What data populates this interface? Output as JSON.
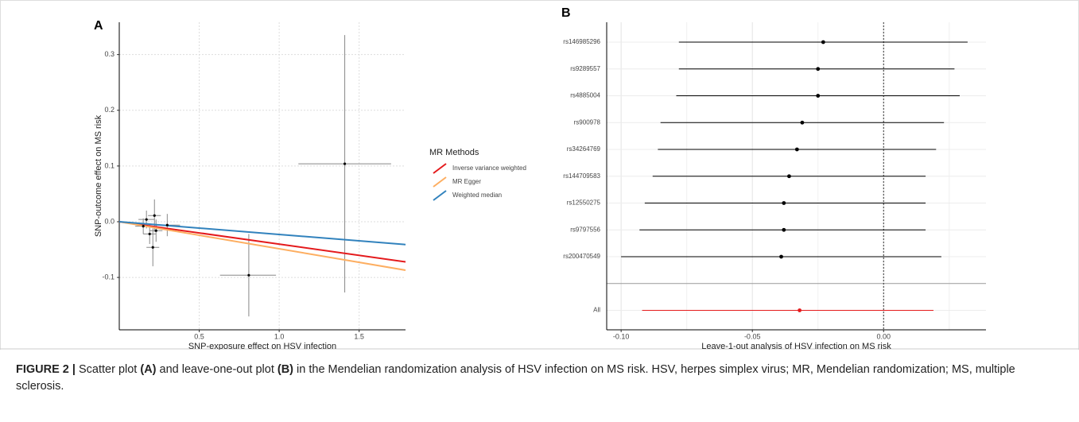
{
  "chart_data": [
    {
      "type": "scatter",
      "panel": "A",
      "xlabel": "SNP-exposure effect on HSV infection",
      "ylabel": "SNP-outcome effect on MS risk",
      "x": [
        0.15,
        0.17,
        0.19,
        0.21,
        0.22,
        0.23,
        0.3,
        0.81,
        1.41
      ],
      "values": [
        -0.008,
        0.004,
        -0.022,
        -0.046,
        0.011,
        -0.016,
        -0.006,
        -0.096,
        0.104
      ],
      "x_low": [
        0.1,
        0.12,
        0.15,
        0.17,
        0.18,
        0.19,
        0.22,
        0.63,
        1.12
      ],
      "x_high": [
        0.2,
        0.22,
        0.23,
        0.25,
        0.26,
        0.27,
        0.38,
        0.98,
        1.7
      ],
      "y_low": [
        -0.022,
        -0.012,
        -0.04,
        -0.08,
        -0.018,
        -0.036,
        -0.026,
        -0.17,
        -0.127
      ],
      "y_high": [
        0.006,
        0.02,
        -0.004,
        -0.012,
        0.04,
        0.004,
        0.014,
        -0.022,
        0.335
      ],
      "point_color": "#000000",
      "errorbar_color": "#888888",
      "legend_title": "MR Methods",
      "series": [
        {
          "name": "Inverse variance weighted",
          "color": "#e41a1c",
          "x": [
            0,
            1.79
          ],
          "values": [
            0,
            -0.072
          ]
        },
        {
          "name": "MR Egger",
          "color": "#fdae61",
          "x": [
            0,
            1.79
          ],
          "values": [
            0,
            -0.087
          ]
        },
        {
          "name": "Weighted median",
          "color": "#3182bd",
          "x": [
            0,
            1.79
          ],
          "values": [
            0,
            -0.041
          ]
        }
      ],
      "xlim": [
        0.0,
        1.79
      ],
      "ylim": [
        -0.194,
        0.358
      ],
      "xticks": [
        0.5,
        {
          "value": 1.0,
          "label": "1.0"
        },
        1.5
      ],
      "yticks": [
        -0.1,
        {
          "value": 0,
          "label": "0.0"
        },
        0.1,
        0.2,
        0.3
      ],
      "grid": true
    },
    {
      "type": "forest",
      "panel": "B",
      "xlabel": "Leave-1-out analysis of HSV infection on MS risk",
      "categories": [
        "rs146985296",
        "rs9289557",
        "rs4885004",
        "rs900978",
        "rs34264769",
        "rs144709583",
        "rs12550275",
        "rs9797556",
        "rs200470549",
        "All"
      ],
      "values": [
        -0.023,
        -0.025,
        -0.025,
        -0.031,
        -0.033,
        -0.036,
        -0.038,
        -0.038,
        -0.039,
        -0.032
      ],
      "low": [
        -0.078,
        -0.078,
        -0.079,
        -0.085,
        -0.086,
        -0.088,
        -0.091,
        -0.093,
        -0.1,
        -0.092
      ],
      "high": [
        0.032,
        0.027,
        0.029,
        0.023,
        0.02,
        0.016,
        0.016,
        0.016,
        0.022,
        0.019
      ],
      "colors": [
        "#000000",
        "#000000",
        "#000000",
        "#000000",
        "#000000",
        "#000000",
        "#000000",
        "#000000",
        "#000000",
        "#e41a1c"
      ],
      "refline": 0,
      "xlim": [
        -0.1055,
        0.039
      ],
      "xticks": [
        {
          "value": -0.1,
          "label": "-0.10"
        },
        -0.05,
        {
          "value": 0,
          "label": "0.00"
        }
      ],
      "grid": true
    }
  ],
  "caption": [
    {
      "text": "FIGURE 2 |",
      "bold": true
    },
    {
      "text": " Scatter plot ",
      "bold": false
    },
    {
      "text": "(A)",
      "bold": true
    },
    {
      "text": " and leave-one-out plot ",
      "bold": false
    },
    {
      "text": "(B)",
      "bold": true
    },
    {
      "text": " in the Mendelian randomization analysis of HSV infection on MS risk. HSV, herpes simplex virus; MR, Mendelian randomization; MS, multiple sclerosis.",
      "bold": false
    }
  ]
}
